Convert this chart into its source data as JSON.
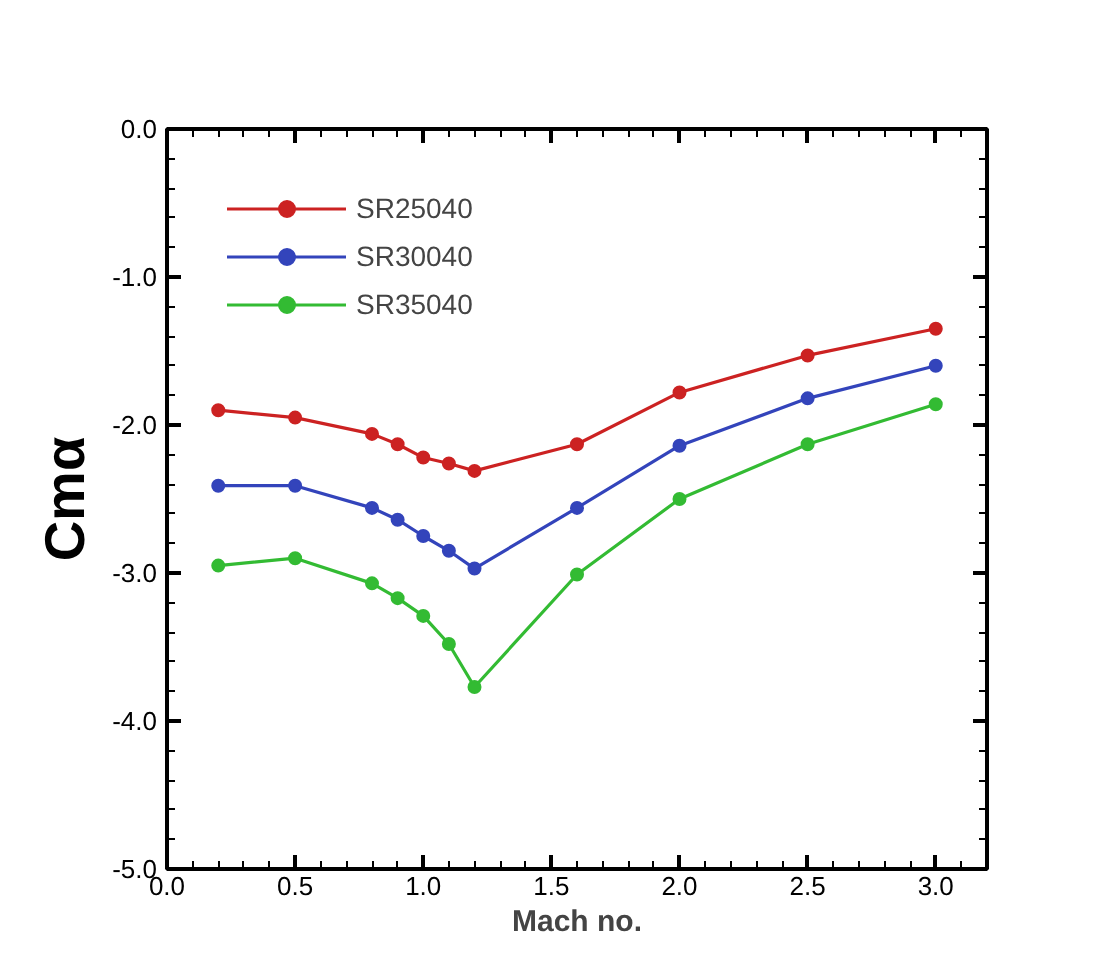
{
  "chart_data": {
    "type": "line",
    "xlabel": "Mach no.",
    "ylabel": "Cmα",
    "x": [
      0.2,
      0.5,
      0.8,
      0.9,
      1.0,
      1.1,
      1.2,
      1.6,
      2.0,
      2.5,
      3.0
    ],
    "series": [
      {
        "name": "SR25040",
        "color": "#cc2222",
        "values": [
          -1.9,
          -1.95,
          -2.06,
          -2.13,
          -2.22,
          -2.26,
          -2.31,
          -2.13,
          -1.78,
          -1.53,
          -1.35
        ]
      },
      {
        "name": "SR30040",
        "color": "#3344bb",
        "values": [
          -2.41,
          -2.41,
          -2.56,
          -2.64,
          -2.75,
          -2.85,
          -2.97,
          -2.56,
          -2.14,
          -1.82,
          -1.6
        ]
      },
      {
        "name": "SR35040",
        "color": "#33bb33",
        "values": [
          -2.95,
          -2.9,
          -3.07,
          -3.17,
          -3.29,
          -3.48,
          -3.77,
          -3.01,
          -2.5,
          -2.13,
          -1.86
        ]
      }
    ],
    "xlim": [
      0,
      3.2
    ],
    "ylim": [
      -5,
      0
    ],
    "xticks": [
      {
        "value": 0,
        "label": "0.0"
      },
      {
        "value": 0.5,
        "label": "0.5"
      },
      {
        "value": 1,
        "label": "1.0"
      },
      {
        "value": 1.5,
        "label": "1.5"
      },
      {
        "value": 2,
        "label": "2.0"
      },
      {
        "value": 2.5,
        "label": "2.5"
      },
      {
        "value": 3,
        "label": "3.0"
      }
    ],
    "yticks": [
      {
        "value": -5,
        "label": "-5.0"
      },
      {
        "value": -4,
        "label": "-4.0"
      },
      {
        "value": -3,
        "label": "-3.0"
      },
      {
        "value": -2,
        "label": "-2.0"
      },
      {
        "value": -1,
        "label": "-1.0"
      },
      {
        "value": 0,
        "label": "0.0"
      }
    ],
    "grid": false,
    "legend": "top left",
    "marker": "circle",
    "line_style": "solid"
  }
}
